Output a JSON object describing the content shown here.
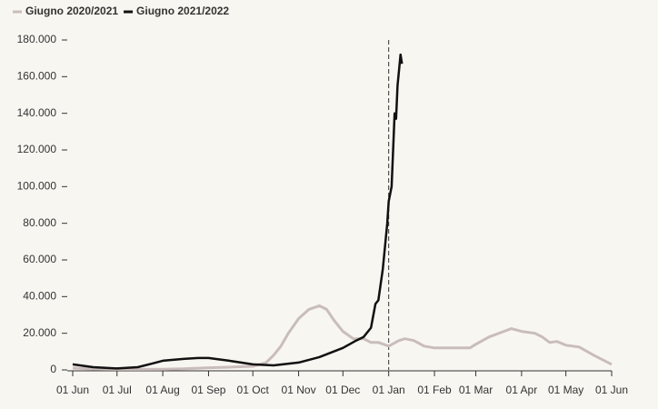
{
  "chart_data": {
    "type": "line",
    "series": [
      {
        "name": "Giugno 2020/2021",
        "color": "#c9bdbb",
        "x": [
          "01 Jun",
          "15 Jun",
          "01 Jul",
          "15 Jul",
          "01 Aug",
          "15 Aug",
          "01 Sep",
          "15 Sep",
          "01 Oct",
          "10 Oct",
          "15 Oct",
          "20 Oct",
          "25 Oct",
          "01 Nov",
          "08 Nov",
          "15 Nov",
          "20 Nov",
          "25 Nov",
          "01 Dec",
          "08 Dec",
          "15 Dec",
          "20 Dec",
          "25 Dec",
          "01 Jan",
          "08 Jan",
          "12 Jan",
          "18 Jan",
          "25 Jan",
          "01 Feb",
          "15 Feb",
          "25 Feb",
          "01 Mar",
          "10 Mar",
          "20 Mar",
          "25 Mar",
          "01 Apr",
          "10 Apr",
          "15 Apr",
          "20 Apr",
          "25 Apr",
          "01 May",
          "10 May",
          "20 May",
          "01 Jun"
        ],
        "values": [
          1000,
          500,
          300,
          300,
          400,
          600,
          1200,
          1500,
          2000,
          4000,
          8000,
          13000,
          20000,
          28000,
          33000,
          35000,
          33000,
          27000,
          21000,
          17000,
          17000,
          15000,
          15000,
          13000,
          16000,
          17000,
          16000,
          13000,
          12000,
          12000,
          12000,
          14000,
          18000,
          21000,
          22500,
          21000,
          20000,
          18000,
          15000,
          15500,
          13500,
          12500,
          8000,
          3000
        ]
      },
      {
        "name": "Giugno 2021/2022",
        "color": "#111111",
        "x": [
          "01 Jun",
          "15 Jun",
          "01 Jul",
          "15 Jul",
          "25 Jul",
          "01 Aug",
          "15 Aug",
          "25 Aug",
          "01 Sep",
          "15 Sep",
          "01 Oct",
          "15 Oct",
          "01 Nov",
          "15 Nov",
          "01 Dec",
          "10 Dec",
          "15 Dec",
          "20 Dec",
          "23 Dec",
          "25 Dec",
          "28 Dec",
          "31 Dec",
          "01 Jan",
          "03 Jan",
          "05 Jan",
          "06 Jan",
          "07 Jan",
          "09 Jan",
          "10 Jan"
        ],
        "values": [
          3000,
          1500,
          800,
          1500,
          3500,
          5000,
          6000,
          6500,
          6500,
          5000,
          3000,
          2500,
          4000,
          7000,
          12000,
          16000,
          18000,
          23000,
          36000,
          38000,
          55000,
          80000,
          92000,
          100000,
          140000,
          137000,
          155000,
          172000,
          167000
        ]
      }
    ],
    "xticks": [
      "01 Jun",
      "01 Jul",
      "01 Aug",
      "01 Sep",
      "01 Oct",
      "01 Nov",
      "01 Dec",
      "01 Jan",
      "01 Feb",
      "01 Mar",
      "01 Apr",
      "01 May",
      "01 Jun"
    ],
    "ylim": [
      0,
      180000
    ],
    "yticks": [
      0,
      {
        "value": 20000,
        "label": "20.000"
      },
      {
        "value": 40000,
        "label": "40.000"
      },
      {
        "value": 60000,
        "label": "60.000"
      },
      {
        "value": 80000,
        "label": "80.000"
      },
      {
        "value": 100000,
        "label": "100.000"
      },
      {
        "value": 120000,
        "label": "120.000"
      },
      {
        "value": 140000,
        "label": "140.000"
      },
      {
        "value": 160000,
        "label": "160.000"
      },
      {
        "value": 180000,
        "label": "180.000"
      }
    ],
    "vline": "01 Jan",
    "grid": false
  }
}
